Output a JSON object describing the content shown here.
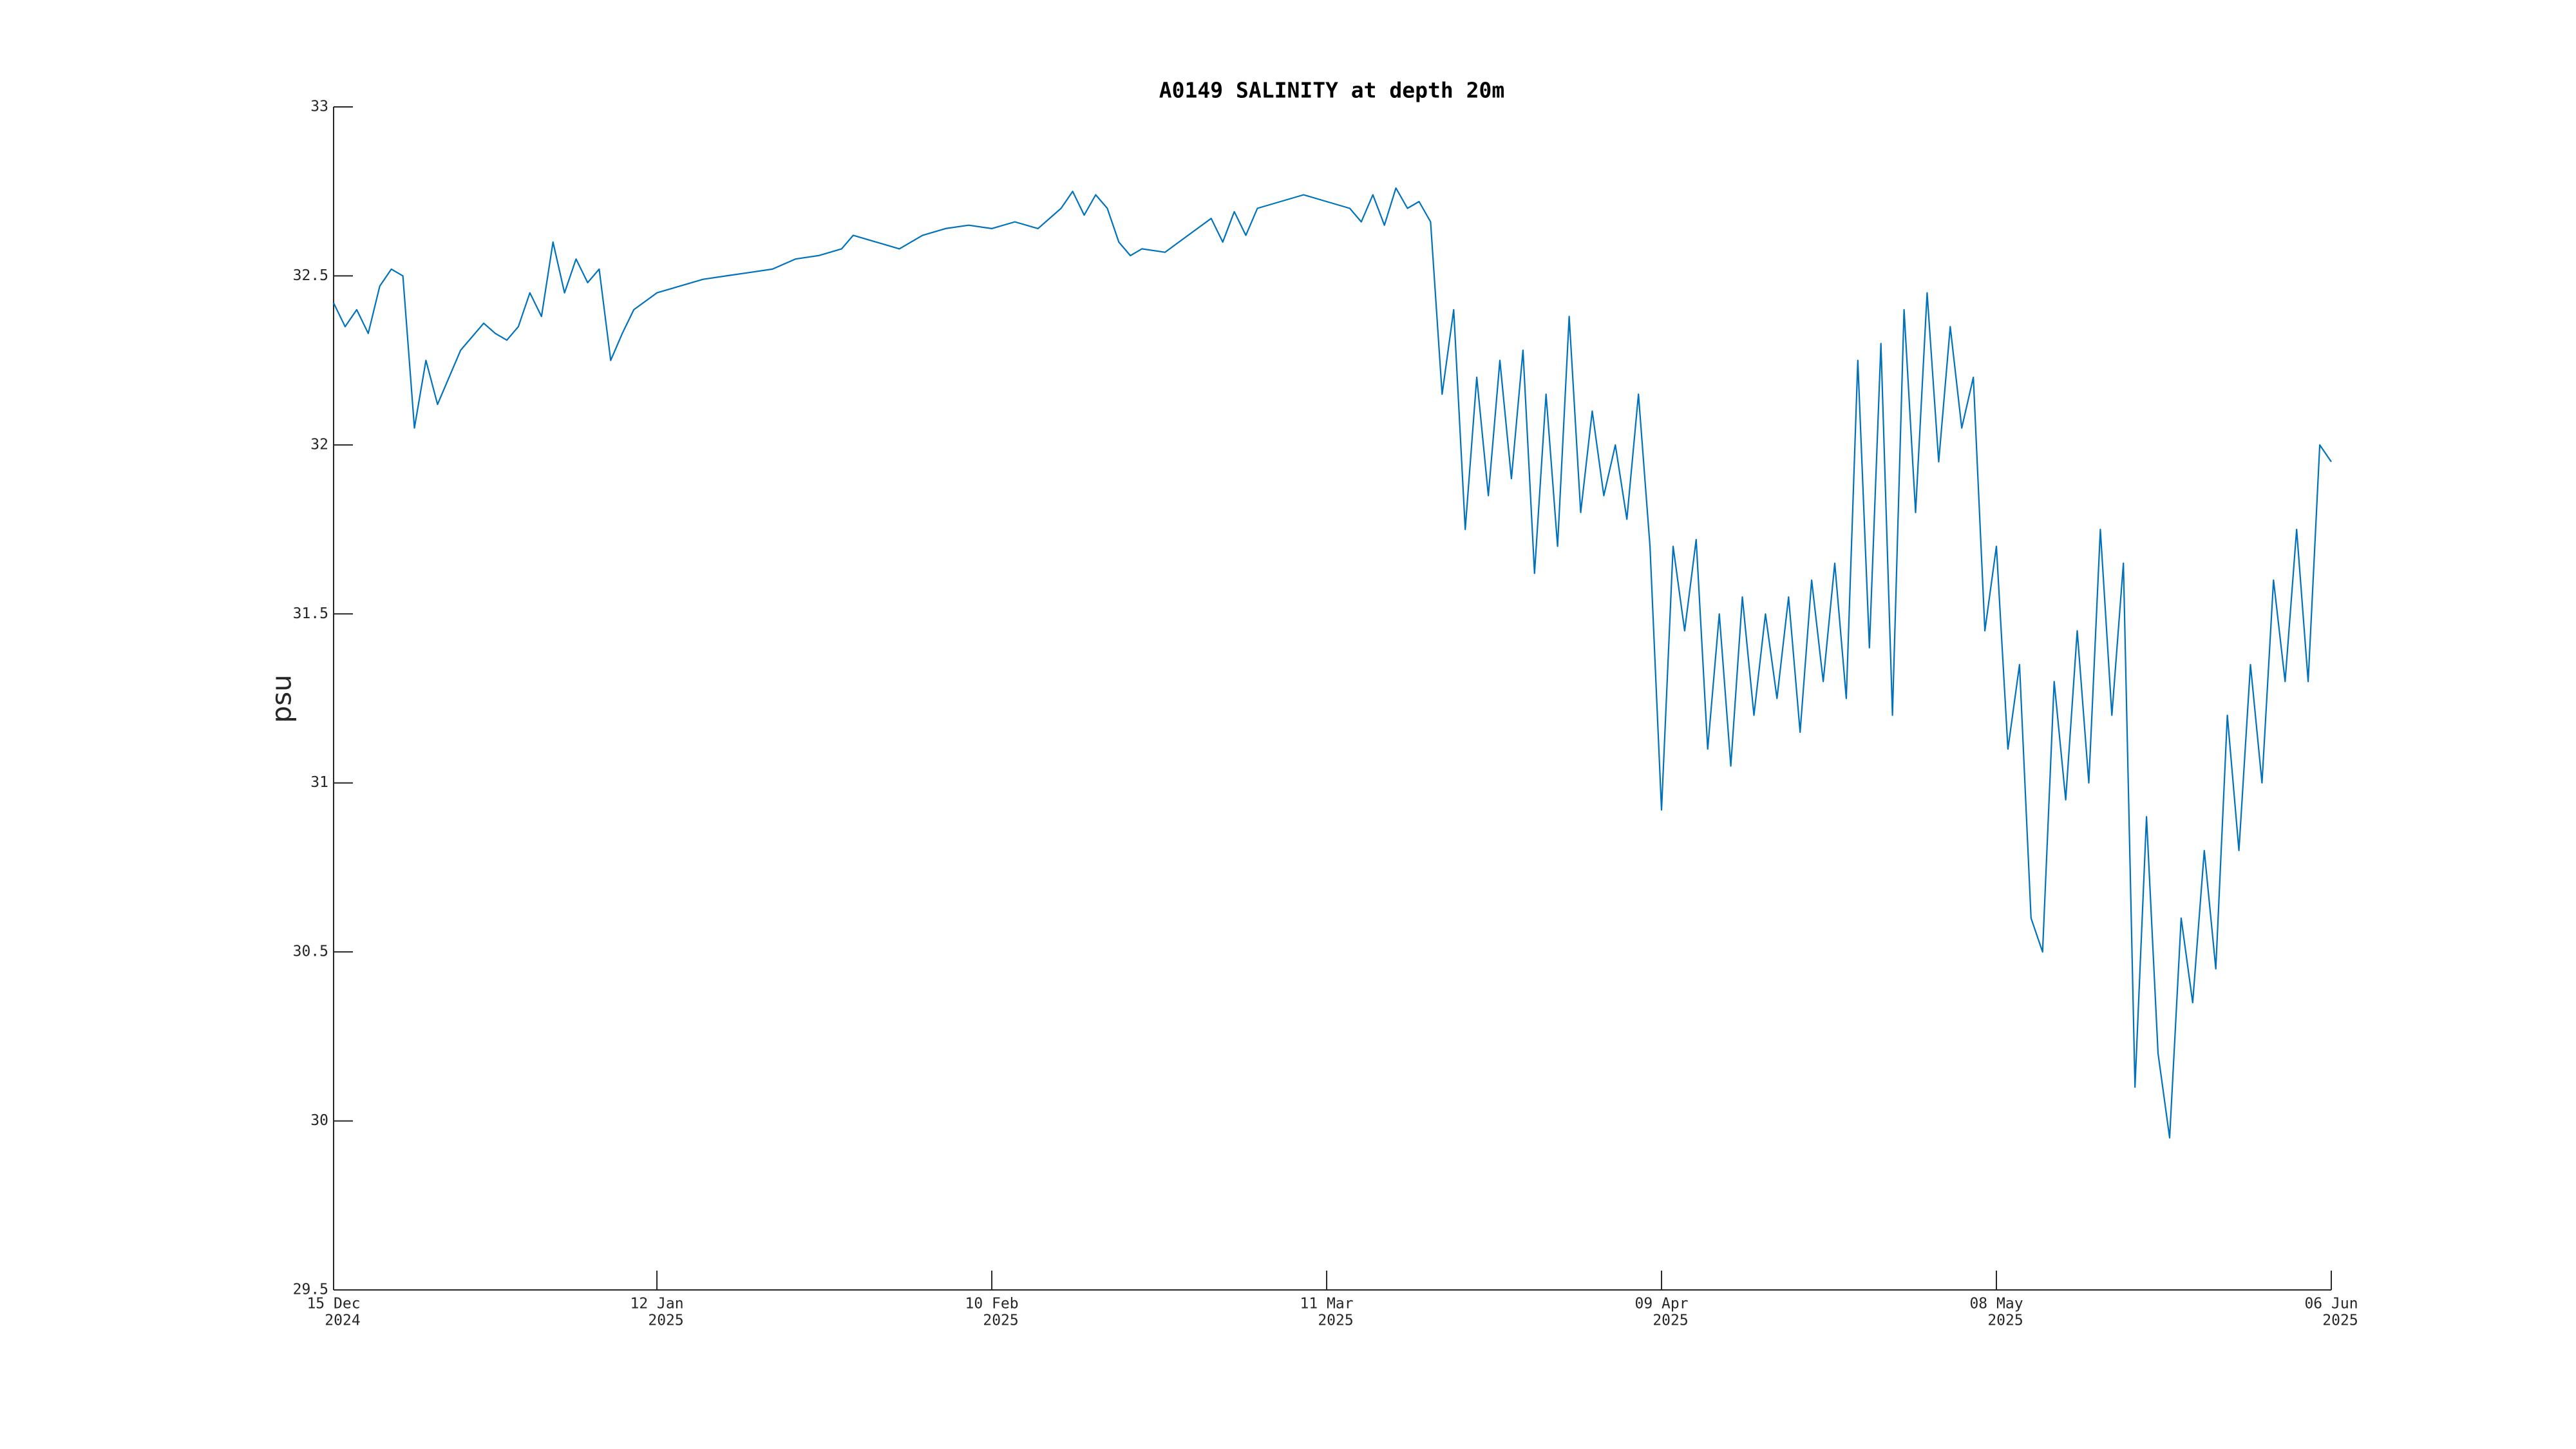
{
  "chart_data": {
    "type": "line",
    "title": "A0149 SALINITY at depth 20m",
    "ylabel": "psu",
    "color": "#0072bd",
    "xlim": [
      "2024-12-15",
      "2025-06-06"
    ],
    "xticks": [
      {
        "value": "2024-12-15",
        "label": [
          "15 Dec",
          "2024"
        ]
      },
      {
        "value": "2025-01-12",
        "label": [
          "12 Jan",
          "2025"
        ]
      },
      {
        "value": "2025-02-10",
        "label": [
          "10 Feb",
          "2025"
        ]
      },
      {
        "value": "2025-03-11",
        "label": [
          "11 Mar",
          "2025"
        ]
      },
      {
        "value": "2025-04-09",
        "label": [
          "09 Apr",
          "2025"
        ]
      },
      {
        "value": "2025-05-08",
        "label": [
          "08 May",
          "2025"
        ]
      },
      {
        "value": "2025-06-06",
        "label": [
          "06 Jun",
          "2025"
        ]
      }
    ],
    "ylim": [
      29.5,
      33
    ],
    "yticks": [
      29.5,
      30,
      30.5,
      31,
      31.5,
      32,
      32.5,
      33
    ],
    "x": [
      "2024-12-15",
      "2024-12-16",
      "2024-12-17",
      "2024-12-18",
      "2024-12-19",
      "2024-12-20",
      "2024-12-21",
      "2024-12-22",
      "2024-12-23",
      "2024-12-24",
      "2024-12-25",
      "2024-12-26",
      "2024-12-27",
      "2024-12-28",
      "2024-12-29",
      "2024-12-30",
      "2024-12-31",
      "2025-01-01",
      "2025-01-02",
      "2025-01-03",
      "2025-01-04",
      "2025-01-05",
      "2025-01-06",
      "2025-01-07",
      "2025-01-08",
      "2025-01-09",
      "2025-01-10",
      "2025-01-12",
      "2025-01-14",
      "2025-01-16",
      "2025-01-18",
      "2025-01-20",
      "2025-01-22",
      "2025-01-24",
      "2025-01-26",
      "2025-01-28",
      "2025-01-29",
      "2025-01-31",
      "2025-02-02",
      "2025-02-04",
      "2025-02-06",
      "2025-02-08",
      "2025-02-10",
      "2025-02-12",
      "2025-02-14",
      "2025-02-16",
      "2025-02-17",
      "2025-02-18",
      "2025-02-19",
      "2025-02-20",
      "2025-02-21",
      "2025-02-22",
      "2025-02-23",
      "2025-02-25",
      "2025-02-27",
      "2025-03-01",
      "2025-03-02",
      "2025-03-03",
      "2025-03-04",
      "2025-03-05",
      "2025-03-07",
      "2025-03-09",
      "2025-03-11",
      "2025-03-13",
      "2025-03-14",
      "2025-03-15",
      "2025-03-16",
      "2025-03-17",
      "2025-03-18",
      "2025-03-19",
      "2025-03-20",
      "2025-03-21",
      "2025-03-22",
      "2025-03-23",
      "2025-03-24",
      "2025-03-25",
      "2025-03-26",
      "2025-03-27",
      "2025-03-28",
      "2025-03-29",
      "2025-03-30",
      "2025-03-31",
      "2025-04-01",
      "2025-04-02",
      "2025-04-03",
      "2025-04-04",
      "2025-04-05",
      "2025-04-06",
      "2025-04-07",
      "2025-04-08",
      "2025-04-09",
      "2025-04-10",
      "2025-04-11",
      "2025-04-12",
      "2025-04-13",
      "2025-04-14",
      "2025-04-15",
      "2025-04-16",
      "2025-04-17",
      "2025-04-18",
      "2025-04-19",
      "2025-04-20",
      "2025-04-21",
      "2025-04-22",
      "2025-04-23",
      "2025-04-24",
      "2025-04-25",
      "2025-04-26",
      "2025-04-27",
      "2025-04-28",
      "2025-04-29",
      "2025-04-30",
      "2025-05-01",
      "2025-05-02",
      "2025-05-03",
      "2025-05-04",
      "2025-05-05",
      "2025-05-06",
      "2025-05-07",
      "2025-05-08",
      "2025-05-09",
      "2025-05-10",
      "2025-05-11",
      "2025-05-12",
      "2025-05-13",
      "2025-05-14",
      "2025-05-15",
      "2025-05-16",
      "2025-05-17",
      "2025-05-18",
      "2025-05-19",
      "2025-05-20",
      "2025-05-21",
      "2025-05-22",
      "2025-05-23",
      "2025-05-24",
      "2025-05-25",
      "2025-05-26",
      "2025-05-27",
      "2025-05-28",
      "2025-05-29",
      "2025-05-30",
      "2025-05-31",
      "2025-06-01",
      "2025-06-02",
      "2025-06-03",
      "2025-06-04",
      "2025-06-05",
      "2025-06-06"
    ],
    "values": [
      32.42,
      32.35,
      32.4,
      32.33,
      32.47,
      32.52,
      32.5,
      32.05,
      32.25,
      32.12,
      32.2,
      32.28,
      32.32,
      32.36,
      32.33,
      32.31,
      32.35,
      32.45,
      32.38,
      32.6,
      32.45,
      32.55,
      32.48,
      32.52,
      32.25,
      32.33,
      32.4,
      32.45,
      32.47,
      32.49,
      32.5,
      32.51,
      32.52,
      32.55,
      32.56,
      32.58,
      32.62,
      32.6,
      32.58,
      32.62,
      32.64,
      32.65,
      32.64,
      32.66,
      32.64,
      32.7,
      32.75,
      32.68,
      32.74,
      32.7,
      32.6,
      32.56,
      32.58,
      32.57,
      32.62,
      32.67,
      32.6,
      32.69,
      32.62,
      32.7,
      32.72,
      32.74,
      32.72,
      32.7,
      32.66,
      32.74,
      32.65,
      32.76,
      32.7,
      32.72,
      32.66,
      32.15,
      32.4,
      31.75,
      32.2,
      31.85,
      32.25,
      31.9,
      32.28,
      31.62,
      32.15,
      31.7,
      32.38,
      31.8,
      32.1,
      31.85,
      32.0,
      31.78,
      32.15,
      31.7,
      30.92,
      31.7,
      31.45,
      31.72,
      31.1,
      31.5,
      31.05,
      31.55,
      31.2,
      31.5,
      31.25,
      31.55,
      31.15,
      31.6,
      31.3,
      31.65,
      31.25,
      32.25,
      31.4,
      32.3,
      31.2,
      32.4,
      31.8,
      32.45,
      31.95,
      32.35,
      32.05,
      32.2,
      31.45,
      31.7,
      31.1,
      31.35,
      30.6,
      30.5,
      31.3,
      30.95,
      31.45,
      31.0,
      31.75,
      31.2,
      31.65,
      30.1,
      30.9,
      30.2,
      29.95,
      30.6,
      30.35,
      30.8,
      30.45,
      31.2,
      30.8,
      31.35,
      31.0,
      31.6,
      31.3,
      31.75,
      31.3,
      32.0,
      31.95
    ]
  }
}
